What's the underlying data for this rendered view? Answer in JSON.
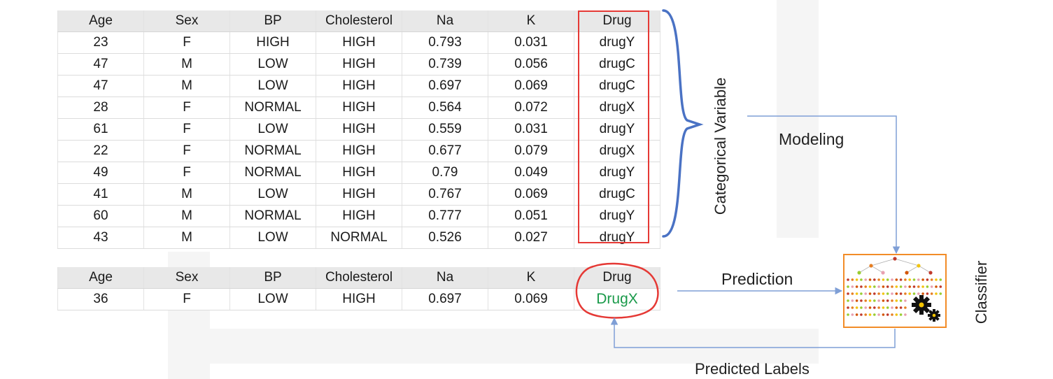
{
  "train_table": {
    "headers": [
      "Age",
      "Sex",
      "BP",
      "Cholesterol",
      "Na",
      "K",
      "Drug"
    ],
    "rows": [
      [
        "23",
        "F",
        "HIGH",
        "HIGH",
        "0.793",
        "0.031",
        "drugY"
      ],
      [
        "47",
        "M",
        "LOW",
        "HIGH",
        "0.739",
        "0.056",
        "drugC"
      ],
      [
        "47",
        "M",
        "LOW",
        "HIGH",
        "0.697",
        "0.069",
        "drugC"
      ],
      [
        "28",
        "F",
        "NORMAL",
        "HIGH",
        "0.564",
        "0.072",
        "drugX"
      ],
      [
        "61",
        "F",
        "LOW",
        "HIGH",
        "0.559",
        "0.031",
        "drugY"
      ],
      [
        "22",
        "F",
        "NORMAL",
        "HIGH",
        "0.677",
        "0.079",
        "drugX"
      ],
      [
        "49",
        "F",
        "NORMAL",
        "HIGH",
        "0.79",
        "0.049",
        "drugY"
      ],
      [
        "41",
        "M",
        "LOW",
        "HIGH",
        "0.767",
        "0.069",
        "drugC"
      ],
      [
        "60",
        "M",
        "NORMAL",
        "HIGH",
        "0.777",
        "0.051",
        "drugY"
      ],
      [
        "43",
        "M",
        "LOW",
        "NORMAL",
        "0.526",
        "0.027",
        "drugY"
      ]
    ]
  },
  "test_table": {
    "headers": [
      "Age",
      "Sex",
      "BP",
      "Cholesterol",
      "Na",
      "K",
      "Drug"
    ],
    "row": [
      "36",
      "F",
      "LOW",
      "HIGH",
      "0.697",
      "0.069",
      "DrugX"
    ]
  },
  "labels": {
    "categorical_variable": "Categorical Variable",
    "modeling": "Modeling",
    "prediction": "Prediction",
    "classifier": "Classifier",
    "predicted_labels": "Predicted Labels"
  },
  "colors": {
    "highlight_red": "#e53935",
    "brace_blue": "#4a72c4",
    "arrow_blue": "#7f9fd6",
    "prediction_green": "#1a9a4a",
    "classifier_border": "#f28c28"
  },
  "icons": {
    "classifier": "decision-tree-icon",
    "gears": "gears-icon"
  }
}
